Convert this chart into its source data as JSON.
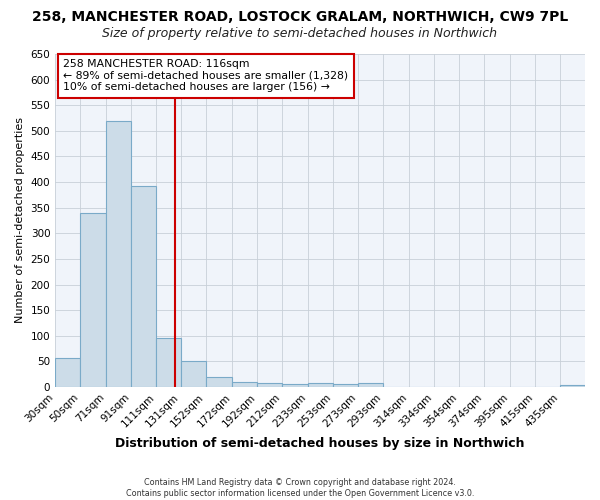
{
  "title": "258, MANCHESTER ROAD, LOSTOCK GRALAM, NORTHWICH, CW9 7PL",
  "subtitle": "Size of property relative to semi-detached houses in Northwich",
  "xlabel": "Distribution of semi-detached houses by size in Northwich",
  "ylabel": "Number of semi-detached properties",
  "footer_line1": "Contains HM Land Registry data © Crown copyright and database right 2024.",
  "footer_line2": "Contains public sector information licensed under the Open Government Licence v3.0.",
  "annotation_title": "258 MANCHESTER ROAD: 116sqm",
  "annotation_line1": "← 89% of semi-detached houses are smaller (1,328)",
  "annotation_line2": "10% of semi-detached houses are larger (156) →",
  "bar_labels": [
    "30sqm",
    "50sqm",
    "71sqm",
    "91sqm",
    "111sqm",
    "131sqm",
    "152sqm",
    "172sqm",
    "192sqm",
    "212sqm",
    "233sqm",
    "253sqm",
    "273sqm",
    "293sqm",
    "314sqm",
    "334sqm",
    "354sqm",
    "374sqm",
    "395sqm",
    "415sqm",
    "435sqm"
  ],
  "bar_values": [
    57,
    340,
    519,
    393,
    95,
    50,
    20,
    10,
    8,
    5,
    8,
    5,
    8,
    0,
    0,
    0,
    0,
    0,
    0,
    0,
    3
  ],
  "bar_edges": [
    20,
    40,
    61,
    81,
    101,
    121,
    141,
    162,
    182,
    202,
    223,
    243,
    263,
    283,
    304,
    324,
    344,
    364,
    385,
    405,
    425,
    445
  ],
  "bar_color": "#ccdce8",
  "bar_edge_color": "#7aaac8",
  "vline_x": 116,
  "vline_color": "#cc0000",
  "ylim": [
    0,
    650
  ],
  "yticks": [
    0,
    50,
    100,
    150,
    200,
    250,
    300,
    350,
    400,
    450,
    500,
    550,
    600,
    650
  ],
  "background_color": "#ffffff",
  "plot_bg_color": "#f0f4fa",
  "grid_color": "#c8d0d8",
  "title_fontsize": 10,
  "subtitle_fontsize": 9
}
